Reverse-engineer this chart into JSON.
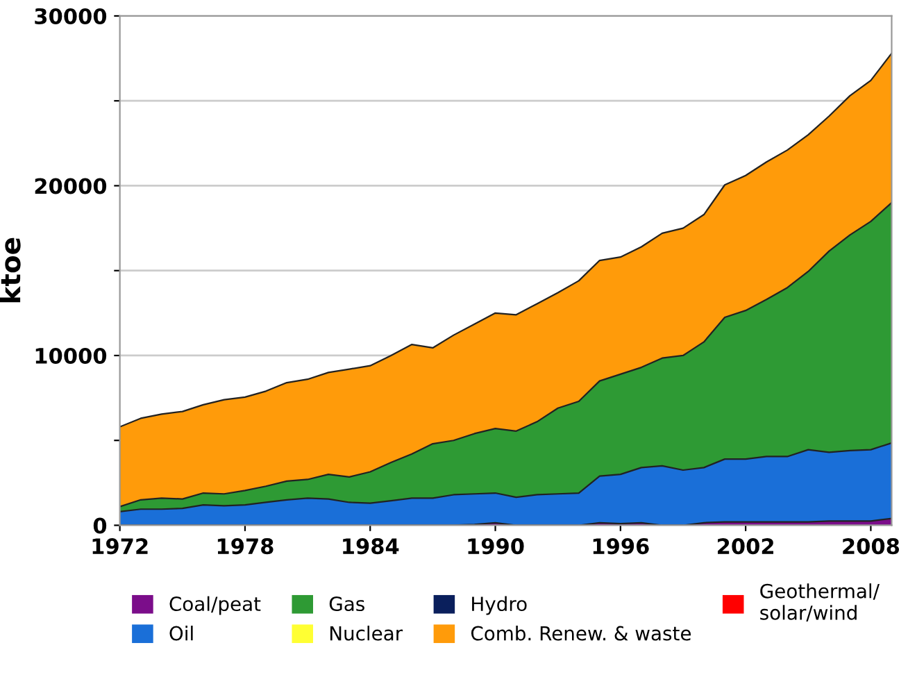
{
  "chart_data": {
    "type": "area",
    "stacked": true,
    "ylabel": "ktoe",
    "x": [
      1972,
      1973,
      1974,
      1975,
      1976,
      1977,
      1978,
      1979,
      1980,
      1981,
      1982,
      1983,
      1984,
      1985,
      1986,
      1987,
      1988,
      1989,
      1990,
      1991,
      1992,
      1993,
      1994,
      1995,
      1996,
      1997,
      1998,
      1999,
      2000,
      2001,
      2002,
      2003,
      2004,
      2005,
      2006,
      2007,
      2008,
      2009
    ],
    "series": [
      {
        "name": "Coal/peat",
        "color": "#7b0d8a",
        "values": [
          0,
          0,
          0,
          0,
          0,
          0,
          0,
          0,
          0,
          0,
          0,
          0,
          0,
          0,
          0,
          0,
          0,
          50,
          150,
          0,
          0,
          0,
          0,
          150,
          100,
          150,
          0,
          0,
          150,
          200,
          200,
          200,
          200,
          200,
          250,
          250,
          250,
          400
        ]
      },
      {
        "name": "Oil",
        "color": "#1a6fd8",
        "values": [
          800,
          950,
          950,
          1000,
          1200,
          1150,
          1200,
          1350,
          1500,
          1600,
          1550,
          1350,
          1300,
          1450,
          1600,
          1600,
          1800,
          1800,
          1750,
          1650,
          1800,
          1850,
          1900,
          2750,
          2900,
          3250,
          3500,
          3250,
          3250,
          3700,
          3700,
          3850,
          3850,
          4250,
          4050,
          4150,
          4200,
          4450
        ]
      },
      {
        "name": "Gas",
        "color": "#2e9a34",
        "values": [
          300,
          550,
          650,
          550,
          700,
          700,
          850,
          950,
          1100,
          1100,
          1450,
          1500,
          1850,
          2250,
          2600,
          3200,
          3200,
          3550,
          3800,
          3900,
          4300,
          5050,
          5400,
          5600,
          5900,
          5900,
          6350,
          6750,
          7400,
          8350,
          8750,
          9250,
          9950,
          10500,
          11850,
          12700,
          13450,
          14150
        ]
      },
      {
        "name": "Nuclear",
        "color": "#ffff33",
        "values": [
          null,
          null,
          null,
          null,
          null,
          null,
          null,
          null,
          null,
          null,
          null,
          null,
          null,
          null,
          null,
          null,
          null,
          null,
          null,
          null,
          null,
          null,
          null,
          null,
          null,
          null,
          null,
          null,
          null,
          null,
          null,
          null,
          null,
          null,
          null,
          null,
          null,
          null
        ]
      },
      {
        "name": "Hydro",
        "color": "#0a1f5c",
        "values": [
          null,
          null,
          null,
          null,
          null,
          null,
          null,
          null,
          null,
          null,
          null,
          null,
          null,
          null,
          null,
          null,
          null,
          null,
          null,
          null,
          null,
          null,
          null,
          null,
          null,
          null,
          null,
          null,
          null,
          null,
          null,
          null,
          null,
          null,
          null,
          null,
          null,
          null
        ]
      },
      {
        "name": "Comb. Renew. & waste",
        "color": "#ff9b0a",
        "values": [
          4700,
          4800,
          4950,
          5150,
          5200,
          5550,
          5500,
          5600,
          5800,
          5900,
          6000,
          6350,
          6250,
          6300,
          6450,
          5650,
          6200,
          6450,
          6800,
          6850,
          6950,
          6800,
          7100,
          7100,
          6900,
          7100,
          7350,
          7500,
          7500,
          7800,
          7950,
          8100,
          8100,
          8050,
          7950,
          8200,
          8300,
          8800
        ]
      },
      {
        "name": "Geothermal/\nsolar/wind",
        "color": "#ff0000",
        "values": [
          null,
          null,
          null,
          null,
          null,
          null,
          null,
          null,
          null,
          null,
          null,
          null,
          null,
          null,
          null,
          null,
          null,
          null,
          null,
          null,
          null,
          null,
          null,
          null,
          null,
          null,
          null,
          null,
          null,
          null,
          null,
          null,
          null,
          null,
          null,
          null,
          null,
          null
        ]
      }
    ],
    "xlim": [
      1972,
      2009
    ],
    "xticks": [
      1972,
      1978,
      1984,
      1990,
      1996,
      2002,
      2008
    ],
    "ylim": [
      0,
      30000
    ],
    "yticks": [
      0,
      {
        "value": 5000,
        "label": null
      },
      10000,
      {
        "value": 15000,
        "label": null
      },
      20000,
      {
        "value": 25000,
        "label": null
      },
      30000
    ],
    "grid": "y",
    "legend": "bottom"
  }
}
